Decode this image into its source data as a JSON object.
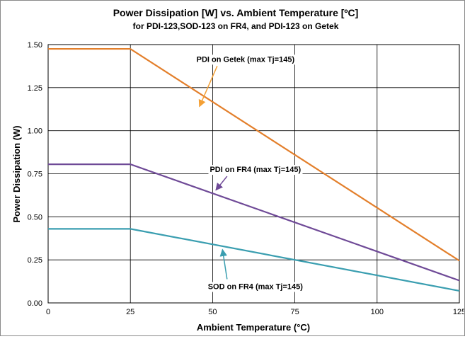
{
  "chart_data": {
    "type": "line",
    "title": "Power Dissipation [W] vs. Ambient Temperature [ºC]",
    "subtitle": "for PDI-123,SOD-123 on FR4, and PDI-123 on Getek",
    "xlabel": "Ambient Temperature (°C)",
    "ylabel": "Power Dissipation (W)",
    "xlim": [
      0,
      125
    ],
    "ylim": [
      0,
      1.5
    ],
    "xticks": [
      0,
      25,
      50,
      75,
      100,
      125
    ],
    "xtick_labels": [
      "0",
      "25",
      "50",
      "75",
      "100",
      "125"
    ],
    "yticks": [
      0,
      0.25,
      0.5,
      0.75,
      1.0,
      1.25,
      1.5
    ],
    "ytick_labels": [
      "0.00",
      "0.25",
      "0.50",
      "0.75",
      "1.00",
      "1.25",
      "1.50"
    ],
    "grid": true,
    "series": [
      {
        "color": "#e37f2b",
        "x": [
          0,
          25,
          125
        ],
        "y": [
          1.475,
          1.475,
          0.245
        ]
      },
      {
        "color": "#6f4a97",
        "x": [
          0,
          25,
          125
        ],
        "y": [
          0.805,
          0.805,
          0.13
        ]
      },
      {
        "color": "#3a9eb0",
        "x": [
          0,
          25,
          125
        ],
        "y": [
          0.43,
          0.43,
          0.07
        ]
      }
    ],
    "annotations": [
      {
        "text": "PDI on Getek  (max Tj=145)",
        "at": [
          60,
          1.4
        ],
        "arrow_to": [
          46,
          1.14
        ],
        "color": "#f4a035"
      },
      {
        "text": "PDI on FR4 (max Tj=145)",
        "at": [
          63,
          0.76
        ],
        "arrow_to": [
          51,
          0.655
        ],
        "color": "#6f4a97"
      },
      {
        "text": "SOD on FR4 (max Tj=145)",
        "at": [
          63,
          0.08
        ],
        "arrow_to": [
          53,
          0.31
        ],
        "color": "#3a9eb0"
      }
    ]
  }
}
